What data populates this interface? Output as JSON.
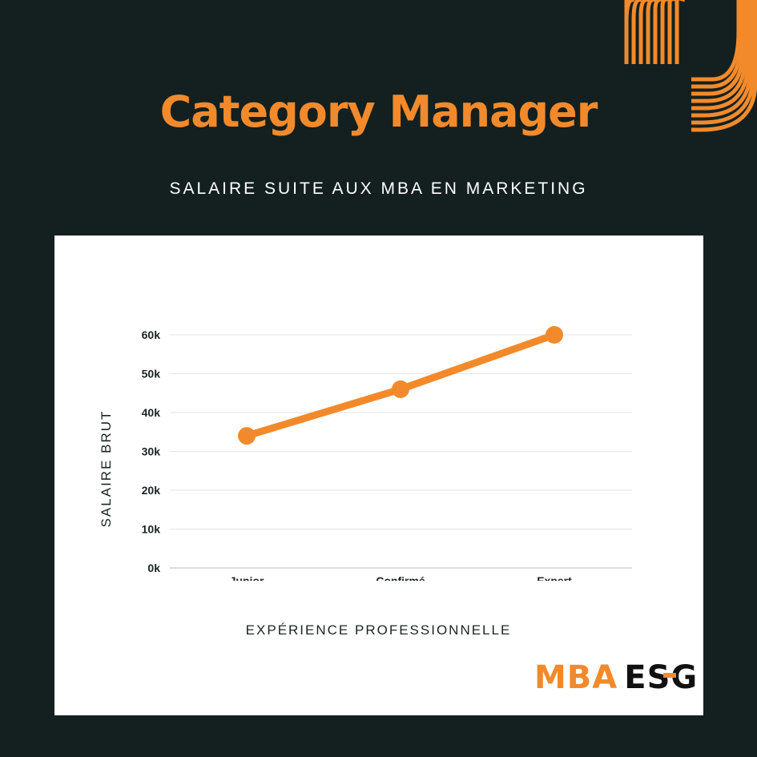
{
  "header": {
    "title": "Category Manager",
    "subtitle": "SALAIRE SUITE AUX MBA EN MARKETING"
  },
  "logo": {
    "mba": "MBA",
    "esg": "ESG"
  },
  "colors": {
    "background": "#13201f",
    "accent": "#f28a2b",
    "panel": "#ffffff",
    "text_dark": "#1b2424"
  },
  "chart_data": {
    "type": "line",
    "title": "",
    "xlabel": "EXPÉRIENCE PROFESSIONNELLE",
    "ylabel": "SALAIRE BRUT",
    "categories": [
      "Junior",
      "Confirmé",
      "Expert"
    ],
    "series": [
      {
        "values": [
          34000,
          46000,
          60000
        ]
      }
    ],
    "y_ticks": [
      "0k",
      "10k",
      "20k",
      "30k",
      "40k",
      "50k",
      "60k"
    ],
    "y_tick_values": [
      0,
      10000,
      20000,
      30000,
      40000,
      50000,
      60000
    ],
    "ylim": [
      0,
      60000
    ],
    "grid": true,
    "legend": "none"
  }
}
